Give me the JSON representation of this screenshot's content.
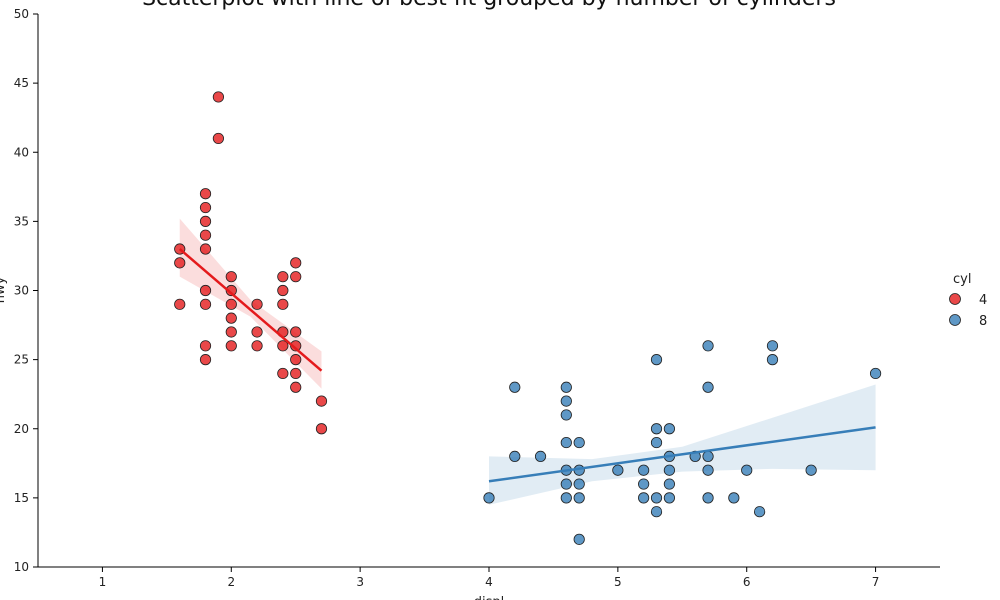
{
  "chart_data": {
    "type": "scatter",
    "title": "Scatterplot with line of best fit grouped by number of cylinders",
    "xlabel": "displ",
    "ylabel": "hwy",
    "xlim": [
      0.5,
      7.5
    ],
    "ylim": [
      10,
      50
    ],
    "x_ticks": [
      1,
      2,
      3,
      4,
      5,
      6,
      7
    ],
    "y_ticks": [
      10,
      15,
      20,
      25,
      30,
      35,
      40,
      45,
      50
    ],
    "grid": false,
    "legend": {
      "title": "cyl",
      "placement": "right",
      "entries": [
        "4",
        "8"
      ]
    },
    "series": [
      {
        "name": "4",
        "color": "#e41a1c",
        "points": [
          [
            1.6,
            33
          ],
          [
            1.6,
            32
          ],
          [
            1.6,
            29
          ],
          [
            1.8,
            37
          ],
          [
            1.8,
            36
          ],
          [
            1.8,
            35
          ],
          [
            1.8,
            34
          ],
          [
            1.8,
            33
          ],
          [
            1.8,
            30
          ],
          [
            1.8,
            29
          ],
          [
            1.8,
            26
          ],
          [
            1.8,
            25
          ],
          [
            1.9,
            44
          ],
          [
            1.9,
            41
          ],
          [
            2.0,
            31
          ],
          [
            2.0,
            30
          ],
          [
            2.0,
            29
          ],
          [
            2.0,
            28
          ],
          [
            2.0,
            27
          ],
          [
            2.0,
            26
          ],
          [
            2.2,
            29
          ],
          [
            2.2,
            27
          ],
          [
            2.2,
            26
          ],
          [
            2.4,
            31
          ],
          [
            2.4,
            30
          ],
          [
            2.4,
            29
          ],
          [
            2.4,
            27
          ],
          [
            2.4,
            26
          ],
          [
            2.4,
            24
          ],
          [
            2.5,
            32
          ],
          [
            2.5,
            31
          ],
          [
            2.5,
            27
          ],
          [
            2.5,
            26
          ],
          [
            2.5,
            25
          ],
          [
            2.5,
            24
          ],
          [
            2.5,
            23
          ],
          [
            2.7,
            22
          ],
          [
            2.7,
            20
          ]
        ],
        "fit": {
          "x": [
            1.6,
            2.7
          ],
          "y": [
            33.0,
            24.2
          ]
        },
        "ci": {
          "x": [
            1.6,
            2.15,
            2.7
          ],
          "upper": [
            35.2,
            29.3,
            25.6
          ],
          "lower": [
            31.0,
            28.1,
            22.9
          ]
        }
      },
      {
        "name": "8",
        "color": "#377eb8",
        "points": [
          [
            4.0,
            15
          ],
          [
            4.2,
            23
          ],
          [
            4.2,
            18
          ],
          [
            4.4,
            18
          ],
          [
            4.6,
            23
          ],
          [
            4.6,
            22
          ],
          [
            4.6,
            21
          ],
          [
            4.6,
            19
          ],
          [
            4.6,
            17
          ],
          [
            4.6,
            16
          ],
          [
            4.6,
            15
          ],
          [
            4.7,
            19
          ],
          [
            4.7,
            17
          ],
          [
            4.7,
            16
          ],
          [
            4.7,
            15
          ],
          [
            4.7,
            12
          ],
          [
            5.0,
            17
          ],
          [
            5.2,
            17
          ],
          [
            5.2,
            16
          ],
          [
            5.2,
            15
          ],
          [
            5.3,
            25
          ],
          [
            5.3,
            20
          ],
          [
            5.3,
            19
          ],
          [
            5.3,
            15
          ],
          [
            5.3,
            14
          ],
          [
            5.4,
            20
          ],
          [
            5.4,
            18
          ],
          [
            5.4,
            17
          ],
          [
            5.4,
            16
          ],
          [
            5.4,
            15
          ],
          [
            5.6,
            18
          ],
          [
            5.7,
            26
          ],
          [
            5.7,
            23
          ],
          [
            5.7,
            18
          ],
          [
            5.7,
            17
          ],
          [
            5.7,
            15
          ],
          [
            5.9,
            15
          ],
          [
            6.0,
            17
          ],
          [
            6.1,
            14
          ],
          [
            6.2,
            26
          ],
          [
            6.2,
            25
          ],
          [
            6.5,
            17
          ],
          [
            7.0,
            24
          ]
        ],
        "fit": {
          "x": [
            4.0,
            7.0
          ],
          "y": [
            16.2,
            20.1
          ]
        },
        "ci": {
          "x": [
            4.0,
            4.8,
            5.5,
            6.2,
            7.0
          ],
          "upper": [
            18.0,
            17.8,
            18.7,
            20.8,
            23.2
          ],
          "lower": [
            14.5,
            16.2,
            16.9,
            17.1,
            17.0
          ]
        }
      }
    ]
  }
}
